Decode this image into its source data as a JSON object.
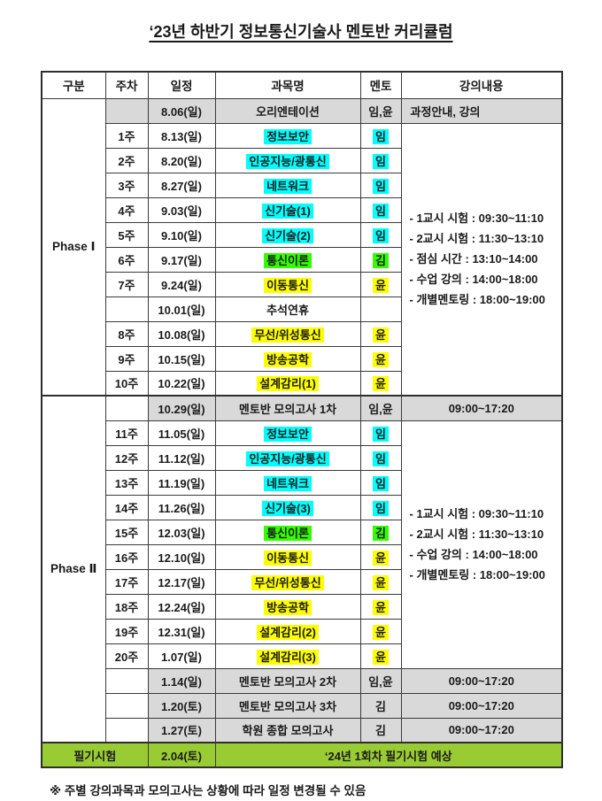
{
  "page": {
    "title": "‘23년 하반기 정보통신기술사 멘토반 커리큘럼",
    "footnote": "※ 주별 강의과목과 모의고사는 상황에 따라 일정 변경될 수 있음"
  },
  "colors": {
    "highlight_cyan": "#00ffff",
    "highlight_green": "#33ff00",
    "highlight_yellow": "#ffff00",
    "row_shade_gray": "#d9d9d9",
    "exam_row_green": "#99cc33"
  },
  "table": {
    "headers": [
      "구분",
      "주차",
      "일정",
      "과목명",
      "멘토",
      "강의내용"
    ],
    "phase1_times": [
      "-  1교시 시험 : 09:30~11:10",
      "-  2교시 시험 : 11:30~13:10",
      "-  점심 시간 : 13:10~14:00",
      "-  수업  강의 : 14:00~18:00",
      "-  개별멘토링 : 18:00~19:00"
    ],
    "phase2_times": [
      "- 1교시 시험 : 09:30~11:10",
      "- 2교시 시험 : 11:30~13:10",
      "- 수업  강의 : 14:00~18:00",
      "- 개별멘토링 : 18:00~19:00"
    ],
    "rows": [
      [
        {
          "t": "Phase Ⅰ",
          "rs": 12,
          "cls": "phase",
          "n": "phase-1-cell"
        },
        {
          "t": "",
          "cls": "sh",
          "n": "week-cell"
        },
        {
          "t": "8.06(일)",
          "cls": "sh",
          "n": "date-cell"
        },
        {
          "t": "오리엔테이션",
          "cls": "sh",
          "n": "subject-cell"
        },
        {
          "t": "임,윤",
          "cls": "sh",
          "n": "mentor-cell"
        },
        {
          "t": "과정안내, 강의",
          "cls": "sh lt",
          "n": "content-cell"
        }
      ],
      [
        {
          "t": "1주",
          "n": "week-cell"
        },
        {
          "t": "8.13(일)",
          "n": "date-cell"
        },
        {
          "t": "정보보안",
          "hl": "c",
          "n": "subject-cell"
        },
        {
          "t": "임",
          "hl": "c",
          "n": "mentor-cell"
        },
        {
          "linesRef": "phase1_times",
          "rs": 11,
          "cls": "times",
          "n": "content-cell"
        }
      ],
      [
        {
          "t": "2주",
          "n": "week-cell"
        },
        {
          "t": "8.20(일)",
          "n": "date-cell"
        },
        {
          "t": "인공지능/광통신",
          "hl": "c",
          "n": "subject-cell"
        },
        {
          "t": "임",
          "hl": "c",
          "n": "mentor-cell"
        }
      ],
      [
        {
          "t": "3주",
          "n": "week-cell"
        },
        {
          "t": "8.27(일)",
          "n": "date-cell"
        },
        {
          "t": "네트워크",
          "hl": "c",
          "n": "subject-cell"
        },
        {
          "t": "임",
          "hl": "c",
          "n": "mentor-cell"
        }
      ],
      [
        {
          "t": "4주",
          "n": "week-cell"
        },
        {
          "t": "9.03(일)",
          "n": "date-cell"
        },
        {
          "t": "신기술(1)",
          "hl": "c",
          "n": "subject-cell"
        },
        {
          "t": "임",
          "hl": "c",
          "n": "mentor-cell"
        }
      ],
      [
        {
          "t": "5주",
          "n": "week-cell"
        },
        {
          "t": "9.10(일)",
          "n": "date-cell"
        },
        {
          "t": "신기술(2)",
          "hl": "c",
          "n": "subject-cell"
        },
        {
          "t": "임",
          "hl": "c",
          "n": "mentor-cell"
        }
      ],
      [
        {
          "t": "6주",
          "n": "week-cell"
        },
        {
          "t": "9.17(일)",
          "n": "date-cell"
        },
        {
          "t": "통신이론",
          "hl": "g",
          "n": "subject-cell"
        },
        {
          "t": "김",
          "hl": "g",
          "n": "mentor-cell"
        }
      ],
      [
        {
          "t": "7주",
          "n": "week-cell"
        },
        {
          "t": "9.24(일)",
          "n": "date-cell"
        },
        {
          "t": "이동통신",
          "hl": "y",
          "n": "subject-cell"
        },
        {
          "t": "윤",
          "hl": "y",
          "n": "mentor-cell"
        }
      ],
      [
        {
          "t": "",
          "n": "week-cell"
        },
        {
          "t": "10.01(일)",
          "n": "date-cell"
        },
        {
          "t": "추석연휴",
          "n": "subject-cell"
        },
        {
          "t": "",
          "n": "mentor-cell"
        }
      ],
      [
        {
          "t": "8주",
          "n": "week-cell"
        },
        {
          "t": "10.08(일)",
          "n": "date-cell"
        },
        {
          "t": "무선/위성통신",
          "hl": "y",
          "n": "subject-cell"
        },
        {
          "t": "윤",
          "hl": "y",
          "n": "mentor-cell"
        }
      ],
      [
        {
          "t": "9주",
          "n": "week-cell"
        },
        {
          "t": "10.15(일)",
          "n": "date-cell"
        },
        {
          "t": "방송공학",
          "hl": "y",
          "n": "subject-cell"
        },
        {
          "t": "윤",
          "hl": "y",
          "n": "mentor-cell"
        }
      ],
      [
        {
          "t": "10주",
          "n": "week-cell"
        },
        {
          "t": "10.22(일)",
          "n": "date-cell"
        },
        {
          "t": "설계감리(1)",
          "hl": "y",
          "n": "subject-cell"
        },
        {
          "t": "윤",
          "hl": "y",
          "n": "mentor-cell"
        }
      ],
      [
        {
          "t": "Phase Ⅱ",
          "rs": 14,
          "cls": "phase pb",
          "n": "phase-2-cell"
        },
        {
          "t": "",
          "cls": "pb",
          "n": "week-cell"
        },
        {
          "t": "10.29(일)",
          "cls": "sh pb",
          "n": "date-cell"
        },
        {
          "t": "멘토반 모의고사 1차",
          "cls": "sh pb",
          "n": "subject-cell"
        },
        {
          "t": "임,윤",
          "cls": "sh pb",
          "n": "mentor-cell"
        },
        {
          "t": "09:00~17:20",
          "cls": "sh pb",
          "n": "content-cell"
        }
      ],
      [
        {
          "t": "11주",
          "n": "week-cell"
        },
        {
          "t": "11.05(일)",
          "n": "date-cell"
        },
        {
          "t": "정보보안",
          "hl": "c",
          "n": "subject-cell"
        },
        {
          "t": "임",
          "hl": "c",
          "n": "mentor-cell"
        },
        {
          "linesRef": "phase2_times",
          "rs": 10,
          "cls": "times",
          "n": "content-cell"
        }
      ],
      [
        {
          "t": "12주",
          "n": "week-cell"
        },
        {
          "t": "11.12(일)",
          "n": "date-cell"
        },
        {
          "t": "인공지능/광통신",
          "hl": "c",
          "n": "subject-cell"
        },
        {
          "t": "임",
          "hl": "c",
          "n": "mentor-cell"
        }
      ],
      [
        {
          "t": "13주",
          "n": "week-cell"
        },
        {
          "t": "11.19(일)",
          "n": "date-cell"
        },
        {
          "t": "네트워크",
          "hl": "c",
          "n": "subject-cell"
        },
        {
          "t": "임",
          "hl": "c",
          "n": "mentor-cell"
        }
      ],
      [
        {
          "t": "14주",
          "n": "week-cell"
        },
        {
          "t": "11.26(일)",
          "n": "date-cell"
        },
        {
          "t": "신기술(3)",
          "hl": "c",
          "n": "subject-cell"
        },
        {
          "t": "임",
          "hl": "c",
          "n": "mentor-cell"
        }
      ],
      [
        {
          "t": "15주",
          "n": "week-cell"
        },
        {
          "t": "12.03(일)",
          "n": "date-cell"
        },
        {
          "t": "통신이론",
          "hl": "g",
          "n": "subject-cell"
        },
        {
          "t": "김",
          "hl": "g",
          "n": "mentor-cell"
        }
      ],
      [
        {
          "t": "16주",
          "n": "week-cell"
        },
        {
          "t": "12.10(일)",
          "n": "date-cell"
        },
        {
          "t": "이동통신",
          "hl": "y",
          "n": "subject-cell"
        },
        {
          "t": "윤",
          "hl": "y",
          "n": "mentor-cell"
        }
      ],
      [
        {
          "t": "17주",
          "n": "week-cell"
        },
        {
          "t": "12.17(일)",
          "n": "date-cell"
        },
        {
          "t": "무선/위성통신",
          "hl": "y",
          "n": "subject-cell"
        },
        {
          "t": "윤",
          "hl": "y",
          "n": "mentor-cell"
        }
      ],
      [
        {
          "t": "18주",
          "n": "week-cell"
        },
        {
          "t": "12.24(일)",
          "n": "date-cell"
        },
        {
          "t": "방송공학",
          "hl": "y",
          "n": "subject-cell"
        },
        {
          "t": "윤",
          "hl": "y",
          "n": "mentor-cell"
        }
      ],
      [
        {
          "t": "19주",
          "n": "week-cell"
        },
        {
          "t": "12.31(일)",
          "n": "date-cell"
        },
        {
          "t": "설계감리(2)",
          "hl": "y",
          "n": "subject-cell"
        },
        {
          "t": "윤",
          "hl": "y",
          "n": "mentor-cell"
        }
      ],
      [
        {
          "t": "20주",
          "n": "week-cell"
        },
        {
          "t": "1.07(일)",
          "n": "date-cell"
        },
        {
          "t": "설계감리(3)",
          "hl": "y",
          "n": "subject-cell"
        },
        {
          "t": "윤",
          "hl": "y",
          "n": "mentor-cell"
        }
      ],
      [
        {
          "t": "",
          "n": "week-cell"
        },
        {
          "t": "1.14(일)",
          "cls": "sh",
          "n": "date-cell"
        },
        {
          "t": "멘토반 모의고사 2차",
          "cls": "sh",
          "n": "subject-cell"
        },
        {
          "t": "임,윤",
          "cls": "sh",
          "n": "mentor-cell"
        },
        {
          "t": "09:00~17:20",
          "cls": "sh",
          "n": "content-cell"
        }
      ],
      [
        {
          "t": "",
          "n": "week-cell"
        },
        {
          "t": "1.20(토)",
          "cls": "sh",
          "n": "date-cell"
        },
        {
          "t": "멘토반 모의고사 3차",
          "cls": "sh",
          "n": "subject-cell"
        },
        {
          "t": "김",
          "cls": "sh",
          "n": "mentor-cell"
        },
        {
          "t": "09:00~17:20",
          "cls": "sh",
          "n": "content-cell"
        }
      ],
      [
        {
          "t": "",
          "n": "week-cell"
        },
        {
          "t": "1.27(토)",
          "cls": "sh",
          "n": "date-cell"
        },
        {
          "t": "학원 종합 모의고사",
          "cls": "sh",
          "n": "subject-cell"
        },
        {
          "t": "김",
          "cls": "sh",
          "n": "mentor-cell"
        },
        {
          "t": "09:00~17:20",
          "cls": "sh",
          "n": "content-cell"
        }
      ],
      [
        {
          "t": "필기시험",
          "cs": 2,
          "cls": "grn pb",
          "n": "exam-label-cell"
        },
        {
          "t": "2.04(토)",
          "cls": "grn pb",
          "n": "exam-date-cell"
        },
        {
          "t": "‘24년 1회차 필기시험 예상",
          "cs": 3,
          "cls": "grn pb",
          "n": "exam-note-cell"
        }
      ]
    ]
  }
}
